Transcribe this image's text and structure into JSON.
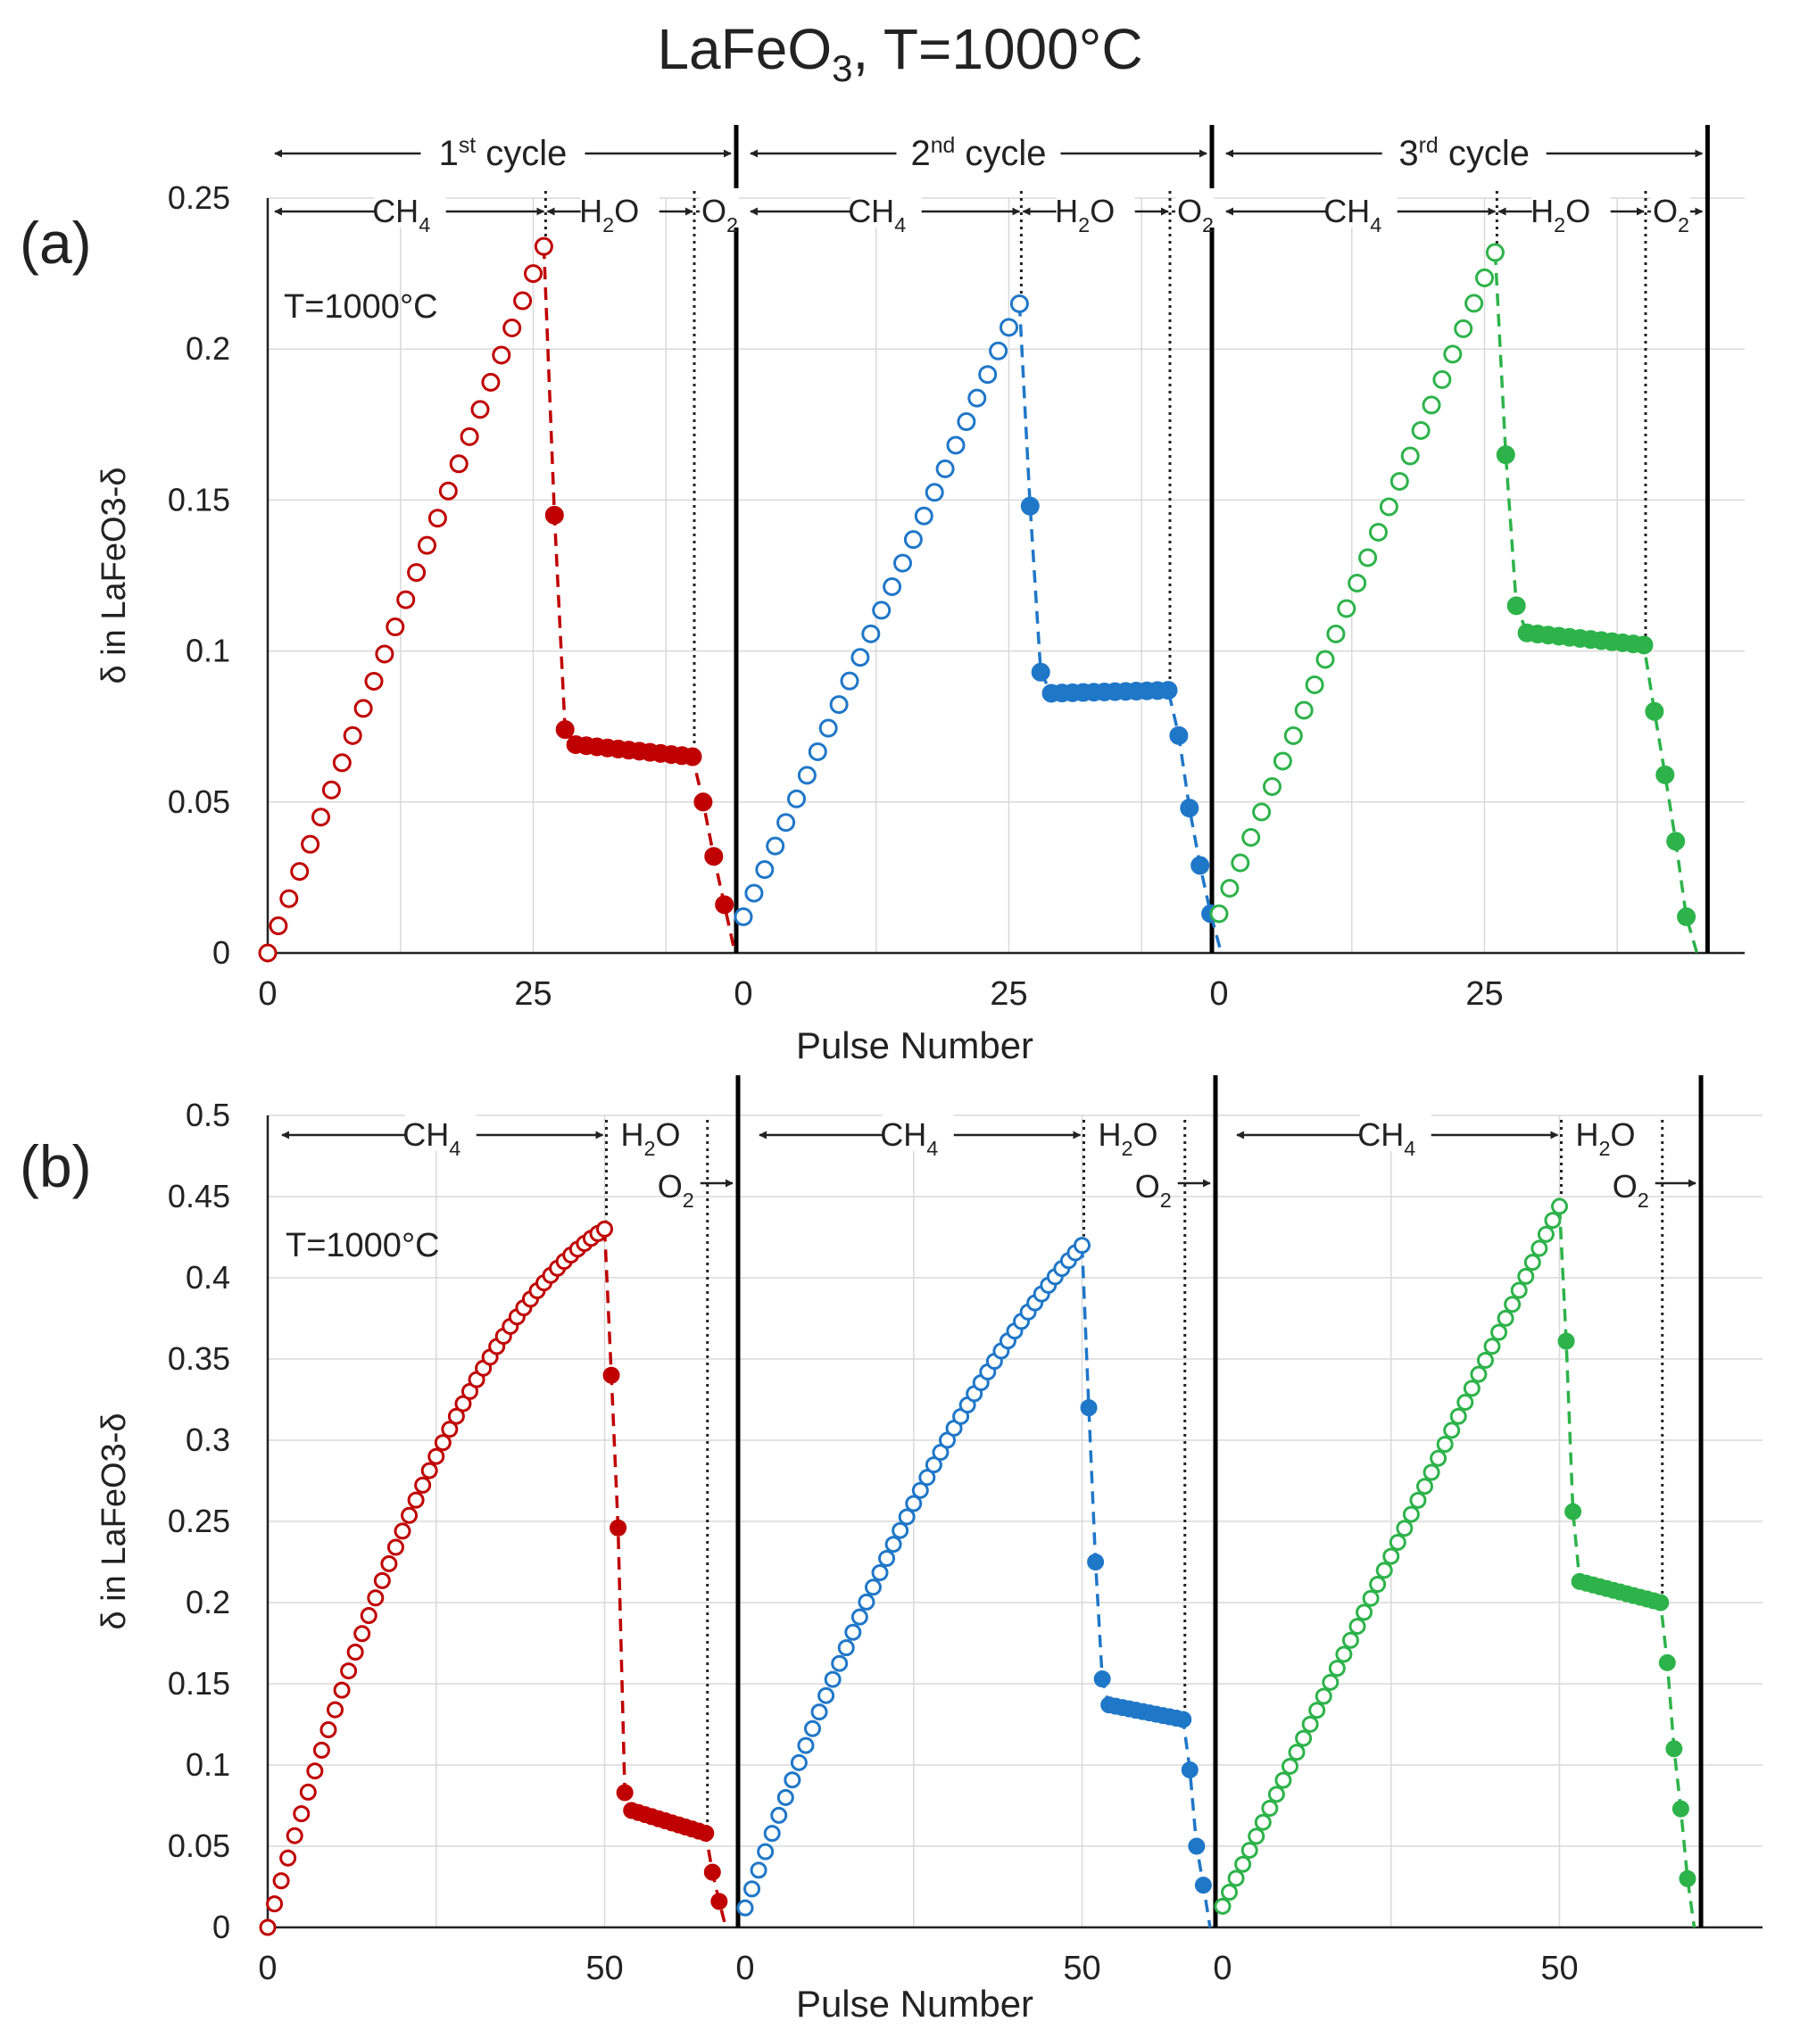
{
  "title": {
    "main": "LaFeO",
    "sub": "3",
    "tail": ", T=1000°C"
  },
  "colors": {
    "cycle1": "#c00000",
    "cycle2": "#1f77c8",
    "cycle3": "#2db34a",
    "grid": "#d9d9d9",
    "axis": "#000000"
  },
  "chart_data": [
    {
      "type": "scatter",
      "panel_label": "(a)",
      "annotation": "T=1000°C",
      "ylabel": "δ in LaFeO3-δ",
      "xlabel": "Pulse Number",
      "ylim": [
        0,
        0.25
      ],
      "yticks": [
        "0",
        "0.05",
        "0.1",
        "0.15",
        "0.2",
        "0.25"
      ],
      "ytick_values": [
        0,
        0.05,
        0.1,
        0.15,
        0.2,
        0.25
      ],
      "xticks": [
        "0",
        "25",
        "0",
        "25",
        "0",
        "25"
      ],
      "cycle_labels": [
        {
          "base": "1",
          "sup": "st",
          "text": " cycle"
        },
        {
          "base": "2",
          "sup": "nd",
          "text": " cycle"
        },
        {
          "base": "3",
          "sup": "rd",
          "text": " cycle"
        }
      ],
      "phase_labels": {
        "ch4": "CH",
        "ch4_sub": "4",
        "h2o_a": "H",
        "h2o_sub": "2",
        "h2o_b": "O",
        "o2": "O",
        "o2_sub": "2"
      },
      "series": [
        {
          "name": "1st cycle",
          "ch4_end": 26,
          "h2o_end": 40,
          "ch4": {
            "start": 0,
            "end": 0.234,
            "curv": 0.0
          },
          "h2o_drop": [
            0.145,
            0.074
          ],
          "plateau": [
            0.069,
            0.065
          ],
          "o2": [
            0.05,
            0.032,
            0.016
          ],
          "o2_end": 0.0
        },
        {
          "name": "2nd cycle",
          "ch4_end": 26,
          "h2o_end": 40,
          "ch4": {
            "start": 0.012,
            "end": 0.215,
            "curv": 0.0
          },
          "h2o_drop": [
            0.148,
            0.093
          ],
          "plateau": [
            0.086,
            0.087
          ],
          "o2": [
            0.072,
            0.048,
            0.029,
            0.013
          ],
          "o2_end": 0.0
        },
        {
          "name": "3rd cycle",
          "ch4_end": 26,
          "h2o_end": 40,
          "ch4": {
            "start": 0.013,
            "end": 0.232,
            "curv": 0.0
          },
          "h2o_drop": [
            0.165,
            0.115
          ],
          "plateau": [
            0.106,
            0.102
          ],
          "o2": [
            0.08,
            0.059,
            0.037,
            0.012
          ],
          "o2_end": 0.0
        }
      ]
    },
    {
      "type": "scatter",
      "panel_label": "(b)",
      "annotation": "T=1000°C",
      "ylabel": "δ in LaFeO3-δ",
      "xlabel": "Pulse Number",
      "ylim": [
        0,
        0.5
      ],
      "yticks": [
        "0",
        "0.05",
        "0.1",
        "0.15",
        "0.2",
        "0.25",
        "0.3",
        "0.35",
        "0.4",
        "0.45",
        "0.5"
      ],
      "ytick_values": [
        0,
        0.05,
        0.1,
        0.15,
        0.2,
        0.25,
        0.3,
        0.35,
        0.4,
        0.45,
        0.5
      ],
      "xticks": [
        "0",
        "50",
        "0",
        "50",
        "0",
        "50"
      ],
      "phase_labels": {
        "ch4": "CH",
        "ch4_sub": "4",
        "h2o_a": "H",
        "h2o_sub": "2",
        "h2o_b": "O",
        "o2": "O",
        "o2_sub": "2"
      },
      "series": [
        {
          "name": "1st cycle",
          "ch4_end": 50,
          "h2o_end": 65,
          "ch4": {
            "start": 0,
            "end": 0.43,
            "curv": 0.075
          },
          "h2o_drop": [
            0.34,
            0.246,
            0.083
          ],
          "plateau": [
            0.072,
            0.058
          ],
          "o2": [
            0.034,
            0.016
          ],
          "o2_end": 0.0
        },
        {
          "name": "2nd cycle",
          "ch4_end": 50,
          "h2o_end": 65,
          "ch4": {
            "start": 0.012,
            "end": 0.42,
            "curv": 0.045
          },
          "h2o_drop": [
            0.32,
            0.225,
            0.153
          ],
          "plateau": [
            0.137,
            0.128
          ],
          "o2": [
            0.097,
            0.05,
            0.026
          ],
          "o2_end": 0.0
        },
        {
          "name": "3rd cycle",
          "ch4_end": 50,
          "h2o_end": 65,
          "ch4": {
            "start": 0.013,
            "end": 0.444,
            "curv": 0.0
          },
          "h2o_drop": [
            0.361,
            0.256
          ],
          "plateau": [
            0.213,
            0.2
          ],
          "o2": [
            0.163,
            0.11,
            0.073,
            0.03
          ],
          "o2_end": 0.0
        }
      ]
    }
  ]
}
